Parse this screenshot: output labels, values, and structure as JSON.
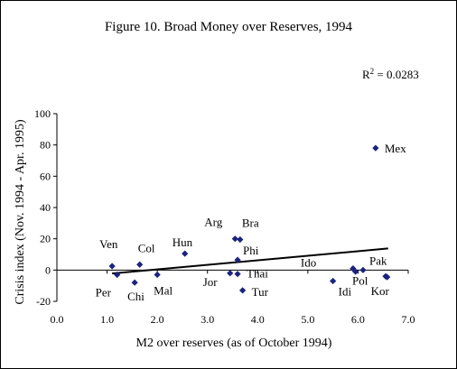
{
  "chart_data": {
    "type": "scatter",
    "title": "Figure 10. Broad Money over Reserves, 1994",
    "xlabel": "M2 over reserves (as of October 1994)",
    "ylabel": "Crisis index (Nov. 1994 - Apr. 1995)",
    "xlim": [
      0,
      7
    ],
    "ylim": [
      -20,
      100
    ],
    "x_ticks": [
      "0.0",
      "1.0",
      "2.0",
      "3.0",
      "4.0",
      "5.0",
      "6.0",
      "7.0"
    ],
    "y_ticks": [
      "-20",
      "0",
      "20",
      "40",
      "60",
      "80",
      "100"
    ],
    "annotation": {
      "r2_label": "R",
      "r2_sup": "2",
      "r2_value": " = 0.0283"
    },
    "trendline": {
      "x": [
        1.1,
        6.6
      ],
      "y": [
        -2.2,
        13.8
      ]
    },
    "marker_color": "#1a237e",
    "points": [
      {
        "label": "Ven",
        "x": 1.1,
        "y": 2.5
      },
      {
        "label": "Per",
        "x": 1.2,
        "y": -3.0
      },
      {
        "label": "Chi",
        "x": 1.55,
        "y": -8.0
      },
      {
        "label": "Col",
        "x": 1.65,
        "y": 3.5
      },
      {
        "label": "Mal",
        "x": 2.0,
        "y": -3.0
      },
      {
        "label": "Hun",
        "x": 2.55,
        "y": 10.5
      },
      {
        "label": "Jor",
        "x": 3.45,
        "y": -2.0
      },
      {
        "label": "Arg",
        "x": 3.55,
        "y": 20.0
      },
      {
        "label": "Bra",
        "x": 3.65,
        "y": 19.5
      },
      {
        "label": "Phi",
        "x": 3.6,
        "y": 6.5
      },
      {
        "label": "Thai",
        "x": 3.6,
        "y": -2.5
      },
      {
        "label": "Tur",
        "x": 3.7,
        "y": -13.0
      },
      {
        "label": "Ido",
        "x": 5.9,
        "y": 1.0
      },
      {
        "label": "Idi",
        "x": 5.5,
        "y": -7.0
      },
      {
        "label": "",
        "x": 5.95,
        "y": -1.0
      },
      {
        "label": "Pol",
        "x": 6.1,
        "y": 0.0
      },
      {
        "label": "Pak",
        "x": 6.55,
        "y": -4.0
      },
      {
        "label": "Kor",
        "x": 6.58,
        "y": -4.5
      },
      {
        "label": "Mex",
        "x": 6.35,
        "y": 78.0
      }
    ]
  }
}
